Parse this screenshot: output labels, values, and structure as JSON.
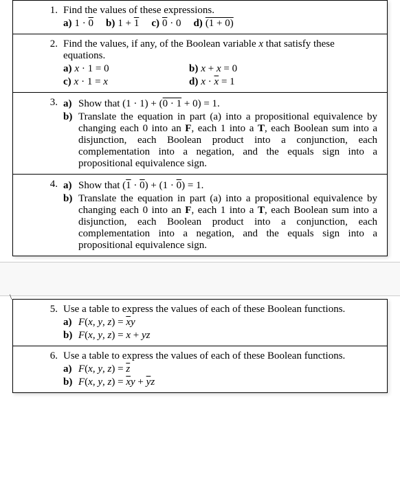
{
  "section1": {
    "problems": [
      {
        "num": "1.",
        "text": "Find the values of these expressions.",
        "subs": [
          {
            "label": "a)",
            "expr_html": "1 · <span class='overline'>0</span>"
          },
          {
            "label": "b)",
            "expr_html": "1 + <span class='overline'>1</span>"
          },
          {
            "label": "c)",
            "expr_html": "<span class='overline'>0</span> · 0"
          },
          {
            "label": "d)",
            "expr_html": "<span class='overline'>(1 + 0)</span>"
          }
        ]
      },
      {
        "num": "2.",
        "text_html": "Find the values, if any, of the Boolean variable <span class='italic'>x</span> that satisfy these equations.",
        "subs2col": [
          {
            "label": "a)",
            "expr_html": "<span class='italic'>x</span> · 1 = 0"
          },
          {
            "label": "b)",
            "expr_html": "<span class='italic'>x</span> + <span class='italic'>x</span> = 0"
          },
          {
            "label": "c)",
            "expr_html": "<span class='italic'>x</span> · 1 = <span class='italic'>x</span>"
          },
          {
            "label": "d)",
            "expr_html": "<span class='italic'>x</span> · <span class='italic overline'>x</span> = 1"
          }
        ]
      },
      {
        "num": "3.",
        "parts": [
          {
            "label": "a)",
            "text_html": "Show that (1 · 1) + (<span class='overline'>0 · 1</span> + 0) = 1."
          },
          {
            "label": "b)",
            "text_html": "Translate the equation in part (a) into a propositional equivalence by changing each 0 into an <b>F</b>, each 1 into a <b>T</b>, each Boolean sum into a disjunction, each Boolean product into a conjunction, each complementation into a negation, and the equals sign into a propositional equivalence sign."
          }
        ]
      },
      {
        "num": "4.",
        "parts": [
          {
            "label": "a)",
            "text_html": "Show that (<span class='overline'>1</span> · <span class='overline'>0</span>) + (1 · <span class='overline'>0</span>) = 1."
          },
          {
            "label": "b)",
            "text_html": "Translate the equation in part (a) into a propositional equivalence by changing each 0 into an <b>F</b>, each 1 into a <b>T</b>, each Boolean sum into a disjunction, each Boolean product into a conjunction, each complementation into a negation, and the equals sign into a propositional equivalence sign."
          }
        ]
      }
    ]
  },
  "section2": {
    "problems": [
      {
        "num": "5.",
        "text": "Use a table to express the values of each of these Boolean functions.",
        "parts_simple": [
          {
            "label": "a)",
            "expr_html": "<span class='italic'>F</span>(<span class='italic'>x</span>, <span class='italic'>y</span>, <span class='italic'>z</span>) = <span class='italic overline'>x</span><span class='italic'>y</span>"
          },
          {
            "label": "b)",
            "expr_html": "<span class='italic'>F</span>(<span class='italic'>x</span>, <span class='italic'>y</span>, <span class='italic'>z</span>) = <span class='italic'>x</span> + <span class='italic'>yz</span>"
          }
        ]
      },
      {
        "num": "6.",
        "text": "Use a table to express the values of each of these Boolean functions.",
        "parts_simple": [
          {
            "label": "a)",
            "expr_html": "<span class='italic'>F</span>(<span class='italic'>x</span>, <span class='italic'>y</span>, <span class='italic'>z</span>) = <span class='italic overline'>z</span>"
          },
          {
            "label": "b)",
            "expr_html": "<span class='italic'>F</span>(<span class='italic'>x</span>, <span class='italic'>y</span>, <span class='italic'>z</span>) = <span class='italic overline'>x</span><span class='italic'>y</span> + <span class='italic overline'>y</span><span class='italic'>z</span>"
          }
        ]
      }
    ]
  },
  "edge_marker": "\\"
}
